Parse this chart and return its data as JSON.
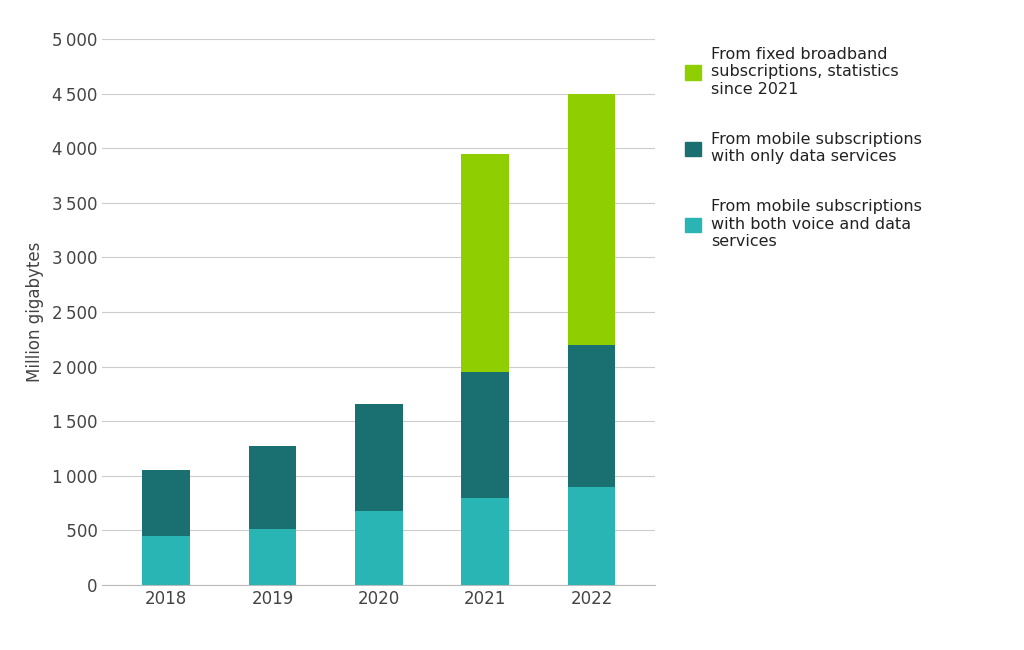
{
  "years": [
    "2018",
    "2019",
    "2020",
    "2021",
    "2022"
  ],
  "voice_data": [
    450,
    510,
    680,
    800,
    900
  ],
  "data_only": [
    600,
    760,
    980,
    1150,
    1300
  ],
  "fixed_broadband": [
    0,
    0,
    0,
    2000,
    2300
  ],
  "color_voice_data": "#2ab5b5",
  "color_data_only": "#1a7070",
  "color_fixed": "#8fce00",
  "ylabel": "Million gigabytes",
  "ylim": [
    0,
    5000
  ],
  "yticks": [
    0,
    500,
    1000,
    1500,
    2000,
    2500,
    3000,
    3500,
    4000,
    4500,
    5000
  ],
  "legend_labels": [
    "From fixed broadband\nsubscriptions, statistics\nsince 2021",
    "From mobile subscriptions\nwith only data services",
    "From mobile subscriptions\nwith both voice and data\nservices"
  ],
  "legend_colors": [
    "#8fce00",
    "#1a7070",
    "#2ab5b5"
  ],
  "background_color": "#ffffff",
  "bar_width": 0.45
}
